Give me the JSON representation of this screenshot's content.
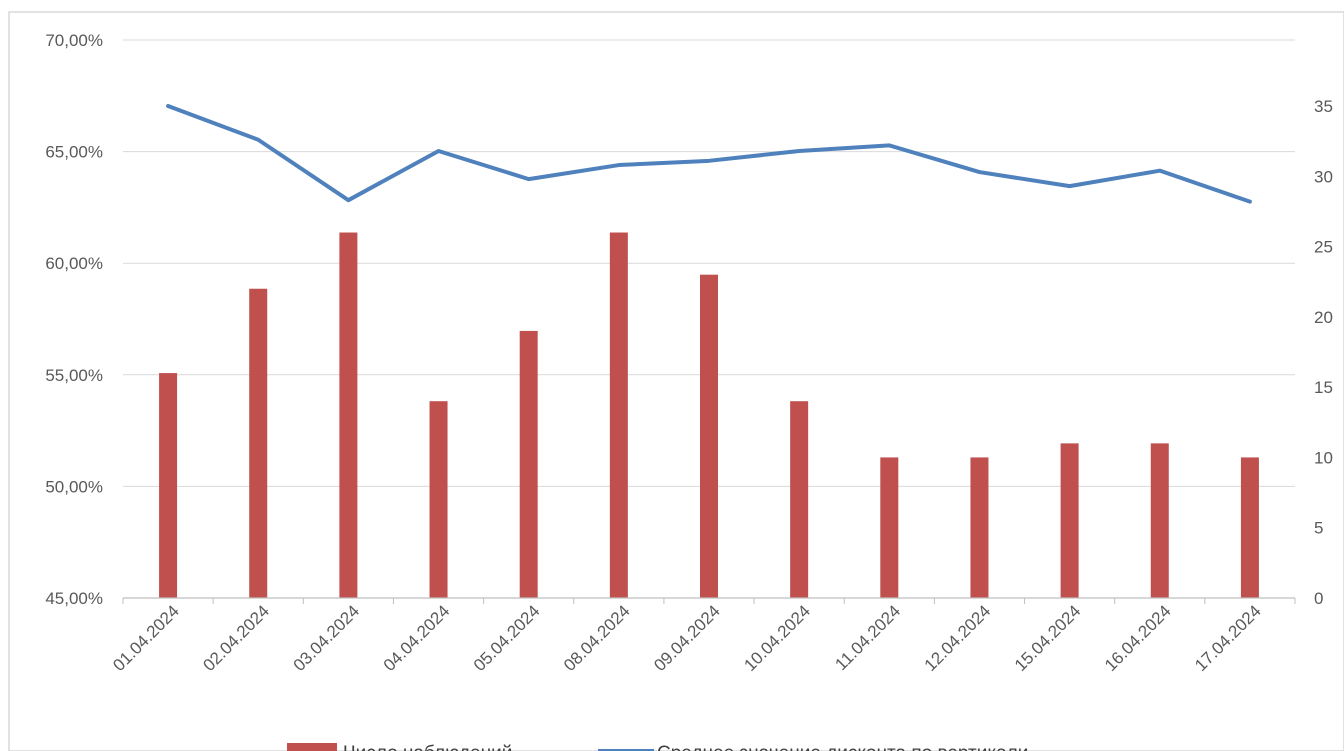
{
  "chart_data": {
    "type": "bar",
    "categories": [
      "01.04.2024",
      "02.04.2024",
      "03.04.2024",
      "04.04.2024",
      "05.04.2024",
      "08.04.2024",
      "09.04.2024",
      "10.04.2024",
      "11.04.2024",
      "12.04.2024",
      "15.04.2024",
      "16.04.2024",
      "17.04.2024"
    ],
    "series": [
      {
        "name": "Число наблюдений",
        "type": "bar",
        "axis": "right",
        "color": "#C0504D",
        "values": [
          16,
          22,
          26,
          14,
          19,
          26,
          23,
          14,
          10,
          10,
          11,
          11,
          10
        ]
      },
      {
        "name": "Среднее значение дисконта по вертикали",
        "type": "line",
        "axis": "right",
        "color": "#4F81BD",
        "values": [
          35,
          32.6,
          28.3,
          31.8,
          29.8,
          30.8,
          31.1,
          31.8,
          32.2,
          30.3,
          29.3,
          30.4,
          28.2
        ]
      }
    ],
    "y_left": {
      "ticks": [
        "45,00%",
        "50,00%",
        "55,00%",
        "60,00%",
        "65,00%",
        "70,00%"
      ],
      "range": [
        45,
        70
      ]
    },
    "y_right": {
      "ticks": [
        "0",
        "5",
        "10",
        "15",
        "20",
        "25",
        "30",
        "35"
      ],
      "range": [
        0,
        35
      ]
    },
    "grid": true,
    "legend": "bottom",
    "title": "",
    "xlabel": "",
    "ylabel": ""
  }
}
